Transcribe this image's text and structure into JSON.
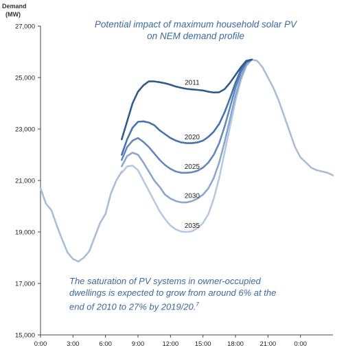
{
  "chart_data": {
    "type": "line",
    "title": "Potential impact of maximum household solar PV on NEM demand profile",
    "title_line1": "Potential impact of maximum household solar PV",
    "title_line2": "on NEM demand profile",
    "ylabel": "Demand",
    "yunit": "(MW)",
    "ylim": [
      15000,
      27000
    ],
    "yticks": [
      15000,
      17000,
      19000,
      21000,
      23000,
      25000,
      27000
    ],
    "ytick_labels": [
      "15,000",
      "17,000",
      "19,000",
      "21,000",
      "23,000",
      "25,000",
      "27,000"
    ],
    "xlim": [
      0,
      27
    ],
    "xticks": [
      0,
      3,
      6,
      9,
      12,
      15,
      18,
      21,
      24
    ],
    "xtick_labels": [
      "0:00",
      "3:00",
      "6:00",
      "9:00",
      "12:00",
      "15:00",
      "18:00",
      "21:00",
      "0:00"
    ],
    "annotation_line1": "The saturation of PV systems in owner-occupied",
    "annotation_line2": "dwellings is expected to grow from around 6% at the",
    "annotation_line3": "end of 2010 to 27% by 2019/20.",
    "annotation_sup": "7",
    "base_curve": {
      "x": [
        0,
        0.5,
        1,
        1.5,
        2,
        2.5,
        3,
        3.5,
        4,
        4.5,
        5,
        5.5,
        6,
        6.5,
        7,
        7.5
      ],
      "y": [
        20700,
        20100,
        19850,
        19250,
        18700,
        18200,
        17950,
        17850,
        18000,
        18250,
        18800,
        19350,
        19700,
        20500,
        21000,
        21350
      ]
    },
    "evening_curve": {
      "x": [
        19.5,
        20,
        20.5,
        21,
        21.5,
        22,
        22.5,
        23,
        23.5,
        24,
        24.5,
        25,
        25.5,
        26,
        26.5,
        27
      ],
      "y": [
        25700,
        25650,
        25400,
        25000,
        24600,
        24100,
        23500,
        22900,
        22300,
        21900,
        21700,
        21500,
        21400,
        21350,
        21300,
        21200
      ]
    },
    "series": [
      {
        "name": "2011",
        "color": "#2f5a8c",
        "x": [
          7.5,
          8,
          8.5,
          9,
          9.5,
          10,
          10.5,
          11,
          11.5,
          12,
          12.5,
          13,
          13.5,
          14,
          14.5,
          15,
          15.5,
          16,
          16.5,
          17,
          17.5,
          18,
          18.5,
          19,
          19.5
        ],
        "y": [
          22600,
          23300,
          24000,
          24450,
          24700,
          24850,
          24850,
          24820,
          24780,
          24720,
          24650,
          24600,
          24560,
          24540,
          24520,
          24500,
          24450,
          24420,
          24430,
          24550,
          24800,
          25100,
          25400,
          25650,
          25700
        ]
      },
      {
        "name": "2020",
        "color": "#4473ad",
        "x": [
          7.5,
          8,
          8.5,
          9,
          9.5,
          10,
          10.5,
          11,
          11.5,
          12,
          12.5,
          13,
          13.5,
          14,
          14.5,
          15,
          15.5,
          16,
          16.5,
          17,
          17.5,
          18,
          18.5,
          19,
          19.5
        ],
        "y": [
          22000,
          22600,
          23050,
          23280,
          23300,
          23250,
          23150,
          22950,
          22800,
          22650,
          22550,
          22480,
          22450,
          22450,
          22480,
          22550,
          22700,
          22900,
          23200,
          23650,
          24200,
          24800,
          25300,
          25600,
          25700
        ]
      },
      {
        "name": "2025",
        "color": "#6388bd",
        "x": [
          7.5,
          8,
          8.5,
          9,
          9.5,
          10,
          10.5,
          11,
          11.5,
          12,
          12.5,
          13,
          13.5,
          14,
          14.5,
          15,
          15.5,
          16,
          16.5,
          17,
          17.5,
          18,
          18.5,
          19,
          19.5
        ],
        "y": [
          21800,
          22300,
          22550,
          22650,
          22500,
          22300,
          22050,
          21800,
          21600,
          21450,
          21350,
          21300,
          21300,
          21320,
          21380,
          21500,
          21700,
          22000,
          22450,
          23100,
          23850,
          24600,
          25200,
          25600,
          25700
        ]
      },
      {
        "name": "2030",
        "color": "#8aa7cf",
        "x": [
          7.5,
          8,
          8.5,
          9,
          9.5,
          10,
          10.5,
          11,
          11.5,
          12,
          12.5,
          13,
          13.5,
          14,
          14.5,
          15,
          15.5,
          16,
          16.5,
          17,
          17.5,
          18,
          18.5,
          19,
          19.5
        ],
        "y": [
          21550,
          21950,
          22080,
          22000,
          21700,
          21350,
          21000,
          20750,
          20450,
          20300,
          20200,
          20150,
          20150,
          20200,
          20300,
          20450,
          20700,
          21100,
          21700,
          22500,
          23400,
          24300,
          25000,
          25500,
          25700
        ]
      },
      {
        "name": "2035",
        "color": "#b6c8e2",
        "x": [
          7.5,
          8,
          8.5,
          9,
          9.5,
          10,
          10.5,
          11,
          11.5,
          12,
          12.5,
          13,
          13.5,
          14,
          14.5,
          15,
          15.5,
          16,
          16.5,
          17,
          17.5,
          18,
          18.5,
          19,
          19.5
        ],
        "y": [
          21300,
          21550,
          21580,
          21400,
          21000,
          20600,
          20200,
          19800,
          19500,
          19250,
          19100,
          19020,
          19000,
          19030,
          19150,
          19350,
          19700,
          20300,
          21100,
          22100,
          23100,
          24100,
          24900,
          25450,
          25700
        ]
      }
    ],
    "series_labels": [
      {
        "name": "2011",
        "x": 14,
        "y": 24720
      },
      {
        "name": "2020",
        "x": 14,
        "y": 22600
      },
      {
        "name": "2025",
        "x": 14,
        "y": 21450
      },
      {
        "name": "2030",
        "x": 14,
        "y": 20320
      },
      {
        "name": "2035",
        "x": 14,
        "y": 19160
      }
    ],
    "grid": false,
    "legend": "none",
    "base_color": "#a9bddb"
  }
}
